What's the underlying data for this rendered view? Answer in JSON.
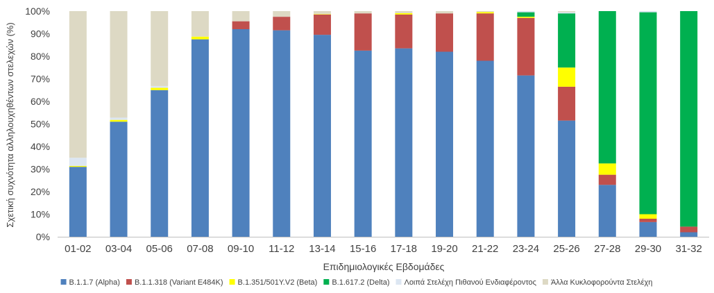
{
  "chart_data": {
    "type": "bar",
    "stacked": true,
    "title": "",
    "xlabel": "Επιδημιολογικές Εβδομάδες",
    "ylabel": "Σχετική συχνότητα αλληλουχηθέντων στελεχών (%)",
    "ylim": [
      0,
      100
    ],
    "y_ticks": [
      0,
      10,
      20,
      30,
      40,
      50,
      60,
      70,
      80,
      90,
      100
    ],
    "y_tick_suffix": "%",
    "grid": false,
    "legend_position": "bottom",
    "categories": [
      "01-02",
      "03-04",
      "05-06",
      "07-08",
      "09-10",
      "11-12",
      "13-14",
      "15-16",
      "17-18",
      "19-20",
      "21-22",
      "23-24",
      "25-26",
      "27-28",
      "29-30",
      "31-32"
    ],
    "series": [
      {
        "name": "B.1.1.7 (Alpha)",
        "color": "#4f81bd",
        "values": [
          31,
          51,
          65,
          87.5,
          92,
          91.5,
          89.5,
          82.5,
          83.5,
          82,
          78,
          71.5,
          51.5,
          23,
          6.5,
          2
        ]
      },
      {
        "name": "B.1.1.318 (Variant E484K)",
        "color": "#c0504d",
        "values": [
          0,
          0,
          0,
          0,
          3.5,
          6,
          9,
          16.5,
          15,
          17,
          21,
          25.5,
          15,
          4.5,
          1.5,
          2.5
        ]
      },
      {
        "name": "B.1.351/501Y.V2 (Beta)",
        "color": "#ffff00",
        "values": [
          0.4,
          0.8,
          1,
          1.2,
          0,
          0,
          0.2,
          0,
          0.6,
          0,
          0.6,
          0.5,
          8.5,
          5,
          2,
          0
        ]
      },
      {
        "name": "B.1.617.2 (Delta)",
        "color": "#00b050",
        "values": [
          0,
          0,
          0,
          0,
          0,
          0,
          0,
          0,
          0,
          0,
          0,
          2,
          24,
          67.5,
          89.5,
          95.5
        ]
      },
      {
        "name": "Λοιπά Στελέχη Πιθανού Ενδιαφέροντος",
        "color": "#dce6f2",
        "values": [
          3.6,
          1,
          0.8,
          0,
          0,
          0,
          0,
          0,
          0,
          0,
          0,
          0.5,
          0.5,
          0,
          0.5,
          0
        ]
      },
      {
        "name": "Άλλα Κυκλοφορούντα Στελέχη",
        "color": "#ddd9c4",
        "values": [
          65,
          47.2,
          33.2,
          11.3,
          4.5,
          2.5,
          1.3,
          1,
          0.9,
          1,
          0.4,
          0,
          0.5,
          0,
          0,
          0
        ]
      }
    ]
  }
}
